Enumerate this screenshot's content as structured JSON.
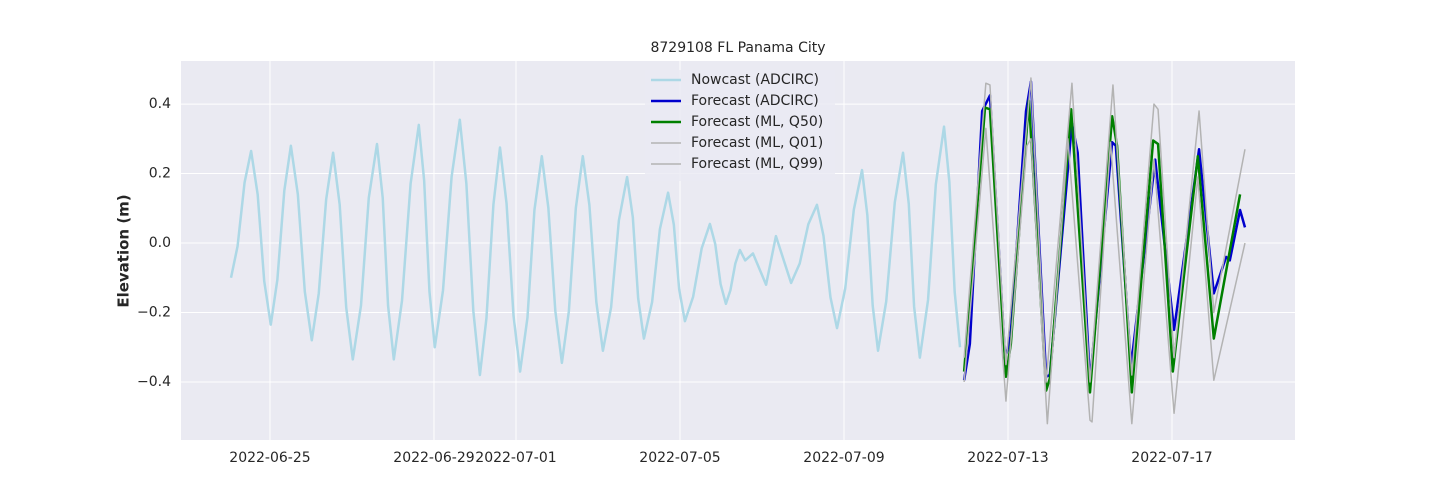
{
  "chart_data": {
    "type": "line",
    "title": "8729108 FL Panama City",
    "y_label": "Elevation (m)",
    "xlim": [
      19165.83,
      19193.0
    ],
    "xticks": [
      {
        "value": 19168,
        "label": "2022-06-25"
      },
      {
        "value": 19172,
        "label": "2022-06-29"
      },
      {
        "value": 19174,
        "label": "2022-07-01"
      },
      {
        "value": 19178,
        "label": "2022-07-05"
      },
      {
        "value": 19182,
        "label": "2022-07-09"
      },
      {
        "value": 19186,
        "label": "2022-07-13"
      },
      {
        "value": 19190,
        "label": "2022-07-17"
      }
    ],
    "ylim": [
      -0.567,
      0.524
    ],
    "yticks": [
      {
        "value": -0.4,
        "label": "−0.4"
      },
      {
        "value": -0.2,
        "label": "−0.2"
      },
      {
        "value": 0,
        "label": "0.0"
      },
      0.2,
      0.4
    ],
    "grid": true,
    "legend": "upper center",
    "series": [
      {
        "name": "Nowcast (ADCIRC)",
        "color": "#add8e6",
        "width": 2.5,
        "x": [
          19167.05,
          19167.21,
          19167.38,
          19167.54,
          19167.7,
          19167.86,
          19168.02,
          19168.18,
          19168.35,
          19168.51,
          19168.68,
          19168.85,
          19169.02,
          19169.19,
          19169.37,
          19169.54,
          19169.7,
          19169.86,
          19170.02,
          19170.22,
          19170.41,
          19170.61,
          19170.75,
          19170.88,
          19171.02,
          19171.22,
          19171.43,
          19171.63,
          19171.76,
          19171.89,
          19172.02,
          19172.22,
          19172.43,
          19172.63,
          19172.79,
          19172.96,
          19173.12,
          19173.28,
          19173.45,
          19173.61,
          19173.77,
          19173.94,
          19174.1,
          19174.28,
          19174.45,
          19174.63,
          19174.79,
          19174.96,
          19175.12,
          19175.29,
          19175.46,
          19175.63,
          19175.79,
          19175.96,
          19176.12,
          19176.32,
          19176.51,
          19176.71,
          19176.85,
          19176.98,
          19177.12,
          19177.32,
          19177.51,
          19177.71,
          19177.85,
          19177.98,
          19178.12,
          19178.32,
          19178.53,
          19178.73,
          19178.86,
          19178.99,
          19179.12,
          19179.23,
          19179.35,
          19179.46,
          19179.59,
          19179.78,
          19180.1,
          19180.34,
          19180.71,
          19180.92,
          19181.13,
          19181.34,
          19181.5,
          19181.67,
          19181.83,
          19182.03,
          19182.24,
          19182.44,
          19182.57,
          19182.7,
          19182.83,
          19183.03,
          19183.24,
          19183.44,
          19183.58,
          19183.71,
          19183.85,
          19184.05,
          19184.24,
          19184.44,
          19184.57,
          19184.7,
          19184.83
        ],
        "values": [
          -0.1,
          -0.009,
          0.174,
          0.265,
          0.14,
          -0.11,
          -0.235,
          -0.106,
          0.151,
          0.28,
          0.14,
          -0.14,
          -0.28,
          -0.145,
          0.125,
          0.26,
          0.111,
          -0.186,
          -0.335,
          -0.18,
          0.13,
          0.285,
          0.13,
          -0.18,
          -0.335,
          -0.166,
          0.171,
          0.34,
          0.18,
          -0.14,
          -0.3,
          -0.136,
          0.191,
          0.355,
          0.171,
          -0.196,
          -0.38,
          -0.216,
          0.111,
          0.275,
          0.114,
          -0.209,
          -0.37,
          -0.215,
          0.095,
          0.25,
          0.101,
          -0.196,
          -0.345,
          -0.196,
          0.101,
          0.25,
          0.11,
          -0.17,
          -0.31,
          -0.185,
          0.065,
          0.19,
          0.074,
          -0.159,
          -0.275,
          -0.17,
          0.04,
          0.145,
          0.053,
          -0.133,
          -0.225,
          -0.155,
          -0.015,
          0.055,
          -0.003,
          -0.118,
          -0.175,
          -0.136,
          -0.059,
          -0.02,
          -0.05,
          -0.03,
          -0.12,
          0.02,
          -0.115,
          -0.059,
          0.054,
          0.11,
          0.021,
          -0.156,
          -0.245,
          -0.131,
          0.096,
          0.21,
          0.08,
          -0.18,
          -0.31,
          -0.168,
          0.118,
          0.26,
          0.113,
          -0.183,
          -0.33,
          -0.164,
          0.169,
          0.335,
          0.176,
          -0.141,
          -0.3
        ]
      },
      {
        "name": "Forecast (ADCIRC)",
        "color": "#0000cd",
        "width": 2.5,
        "x": [
          19184.93,
          19185.07,
          19185.37,
          19185.56,
          19185.93,
          19186.06,
          19186.44,
          19186.56,
          19186.93,
          19187.02,
          19187.56,
          19187.7,
          19188.0,
          19188.54,
          19188.63,
          19189.0,
          19189.59,
          19190.05,
          19190.66,
          19191.02,
          19191.32,
          19191.41,
          19191.66,
          19191.78
        ],
        "values": [
          -0.395,
          -0.29,
          0.38,
          0.425,
          -0.335,
          -0.27,
          0.38,
          0.465,
          -0.385,
          -0.38,
          0.345,
          0.26,
          -0.4,
          0.29,
          0.28,
          -0.355,
          0.24,
          -0.25,
          0.27,
          -0.145,
          -0.04,
          -0.05,
          0.095,
          0.045
        ]
      },
      {
        "name": "Forecast (ML, Q50)",
        "color": "#008000",
        "width": 2.5,
        "x": [
          19184.93,
          19185.44,
          19185.56,
          19185.95,
          19186.07,
          19186.51,
          19186.93,
          19187.02,
          19187.54,
          19188.0,
          19188.54,
          19188.66,
          19189.02,
          19189.54,
          19189.66,
          19190.02,
          19190.63,
          19191.02,
          19191.12,
          19191.66
        ],
        "values": [
          -0.37,
          0.39,
          0.385,
          -0.385,
          -0.29,
          0.41,
          -0.425,
          -0.39,
          0.385,
          -0.43,
          0.365,
          0.28,
          -0.43,
          0.295,
          0.285,
          -0.37,
          0.25,
          -0.275,
          -0.21,
          0.14
        ]
      },
      {
        "name": "Forecast (ML, Q01)",
        "color": "#b3b3b3",
        "width": 1.5,
        "x": [
          19184.93,
          19185.46,
          19185.95,
          19186.46,
          19186.56,
          19186.96,
          19187.46,
          19188.0,
          19188.05,
          19188.5,
          19189.02,
          19189.56,
          19190.05,
          19190.63,
          19191.02,
          19191.78
        ],
        "values": [
          -0.4,
          0.33,
          -0.455,
          0.28,
          0.3,
          -0.52,
          0.3,
          -0.51,
          -0.515,
          0.29,
          -0.52,
          0.24,
          -0.49,
          0.19,
          -0.395,
          0.0
        ]
      },
      {
        "name": "Forecast (ML, Q99)",
        "color": "#b3b3b3",
        "width": 1.5,
        "x": [
          19184.93,
          19185.46,
          19185.56,
          19185.95,
          19186.56,
          19186.93,
          19187.56,
          19188.0,
          19188.56,
          19189.02,
          19189.56,
          19189.66,
          19190.05,
          19190.66,
          19191.02,
          19191.78
        ],
        "values": [
          -0.33,
          0.46,
          0.455,
          -0.35,
          0.475,
          -0.4,
          0.46,
          -0.4,
          0.455,
          -0.38,
          0.4,
          0.385,
          -0.33,
          0.38,
          -0.2,
          0.27
        ]
      }
    ]
  }
}
